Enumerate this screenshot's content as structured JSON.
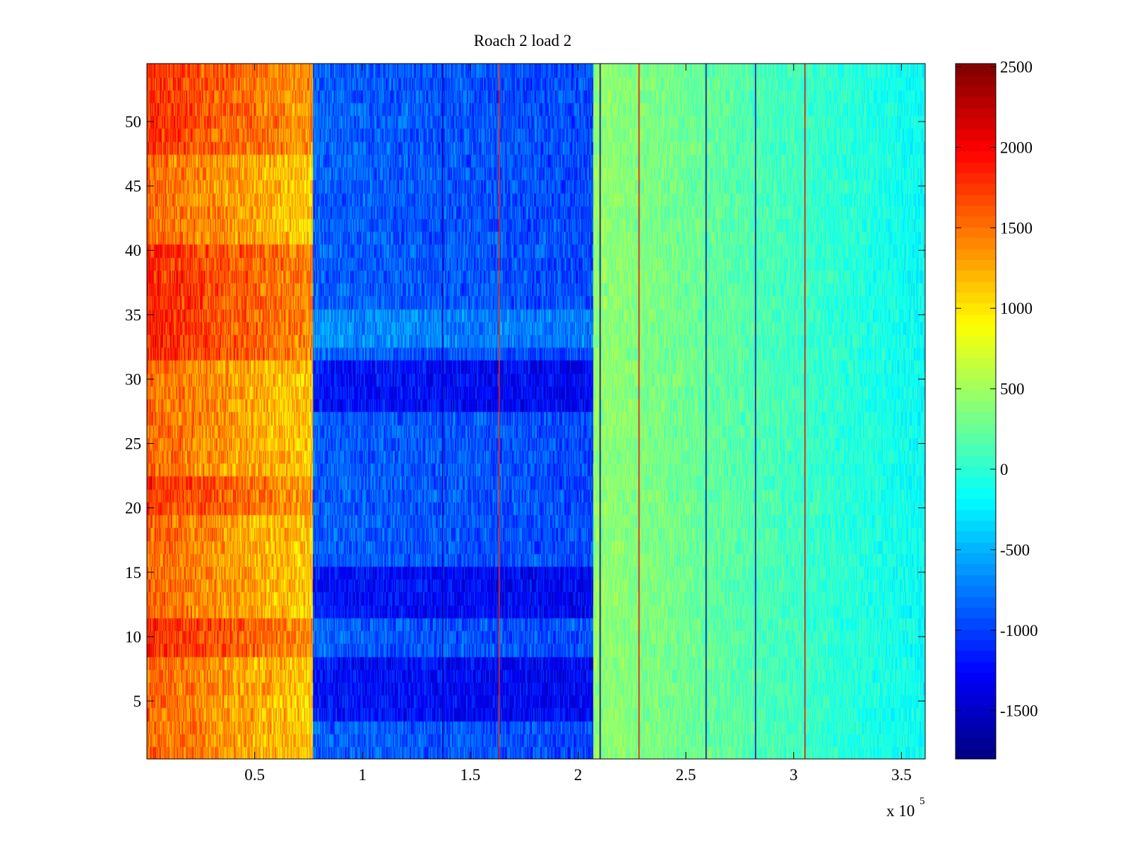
{
  "chart_data": {
    "type": "heatmap",
    "title": "Roach 2 load 2",
    "xlabel": "",
    "ylabel": "",
    "x_exponent_label": {
      "base": "x 10",
      "exponent": "5"
    },
    "xlim": [
      0,
      361000
    ],
    "ylim": [
      0.5,
      54.5
    ],
    "rows": 54,
    "x_ticks": [
      {
        "value": 50000,
        "label": "0.5"
      },
      {
        "value": 100000,
        "label": "1"
      },
      {
        "value": 150000,
        "label": "1.5"
      },
      {
        "value": 200000,
        "label": "2"
      },
      {
        "value": 250000,
        "label": "2.5"
      },
      {
        "value": 300000,
        "label": "3"
      },
      {
        "value": 350000,
        "label": "3.5"
      }
    ],
    "y_ticks": [
      {
        "value": 5,
        "label": "5"
      },
      {
        "value": 10,
        "label": "10"
      },
      {
        "value": 15,
        "label": "15"
      },
      {
        "value": 20,
        "label": "20"
      },
      {
        "value": 25,
        "label": "25"
      },
      {
        "value": 30,
        "label": "30"
      },
      {
        "value": 35,
        "label": "35"
      },
      {
        "value": 40,
        "label": "40"
      },
      {
        "value": 45,
        "label": "45"
      },
      {
        "value": 50,
        "label": "50"
      }
    ],
    "colorbar": {
      "colormap": "jet",
      "clim": [
        -1800,
        2520
      ],
      "ticks": [
        {
          "value": 2500,
          "label": "2500"
        },
        {
          "value": 2000,
          "label": "2000"
        },
        {
          "value": 1500,
          "label": "1500"
        },
        {
          "value": 1000,
          "label": "1000"
        },
        {
          "value": 500,
          "label": "500"
        },
        {
          "value": 0,
          "label": "0"
        },
        {
          "value": -500,
          "label": "-500"
        },
        {
          "value": -1000,
          "label": "-1000"
        },
        {
          "value": -1500,
          "label": "-1500"
        }
      ]
    },
    "segments": [
      {
        "x_start": 0,
        "x_end": 77000,
        "level_left": 1550,
        "level_right": 1100,
        "noise": 350
      },
      {
        "x_start": 77000,
        "x_end": 207000,
        "level_left": -850,
        "level_right": -950,
        "noise": 300
      },
      {
        "x_start": 207000,
        "x_end": 361000,
        "level_left": 450,
        "level_right": -150,
        "noise": 200
      }
    ],
    "row_offsets": [
      {
        "rows": "4-8",
        "segment": 1,
        "offset": -350
      },
      {
        "rows": "12-15",
        "segment": 1,
        "offset": -350
      },
      {
        "rows": "28-31",
        "segment": 1,
        "offset": -350
      },
      {
        "rows": "9-11",
        "segment": 0,
        "offset": 300
      },
      {
        "rows": "20-22",
        "segment": 0,
        "offset": 250
      },
      {
        "rows": "32-40",
        "segment": 0,
        "offset": 300
      },
      {
        "rows": "48-54",
        "segment": 0,
        "offset": 250
      },
      {
        "rows": "33-35",
        "segment": 1,
        "offset": 200
      }
    ],
    "vertical_lines": [
      {
        "x": 210000,
        "value": -1700
      },
      {
        "x": 228000,
        "value": 2000
      },
      {
        "x": 259000,
        "value": -1700
      },
      {
        "x": 282000,
        "value": -1700
      },
      {
        "x": 305000,
        "value": 2100
      },
      {
        "x": 137000,
        "value": -1600
      },
      {
        "x": 163000,
        "value": 1800
      }
    ]
  }
}
